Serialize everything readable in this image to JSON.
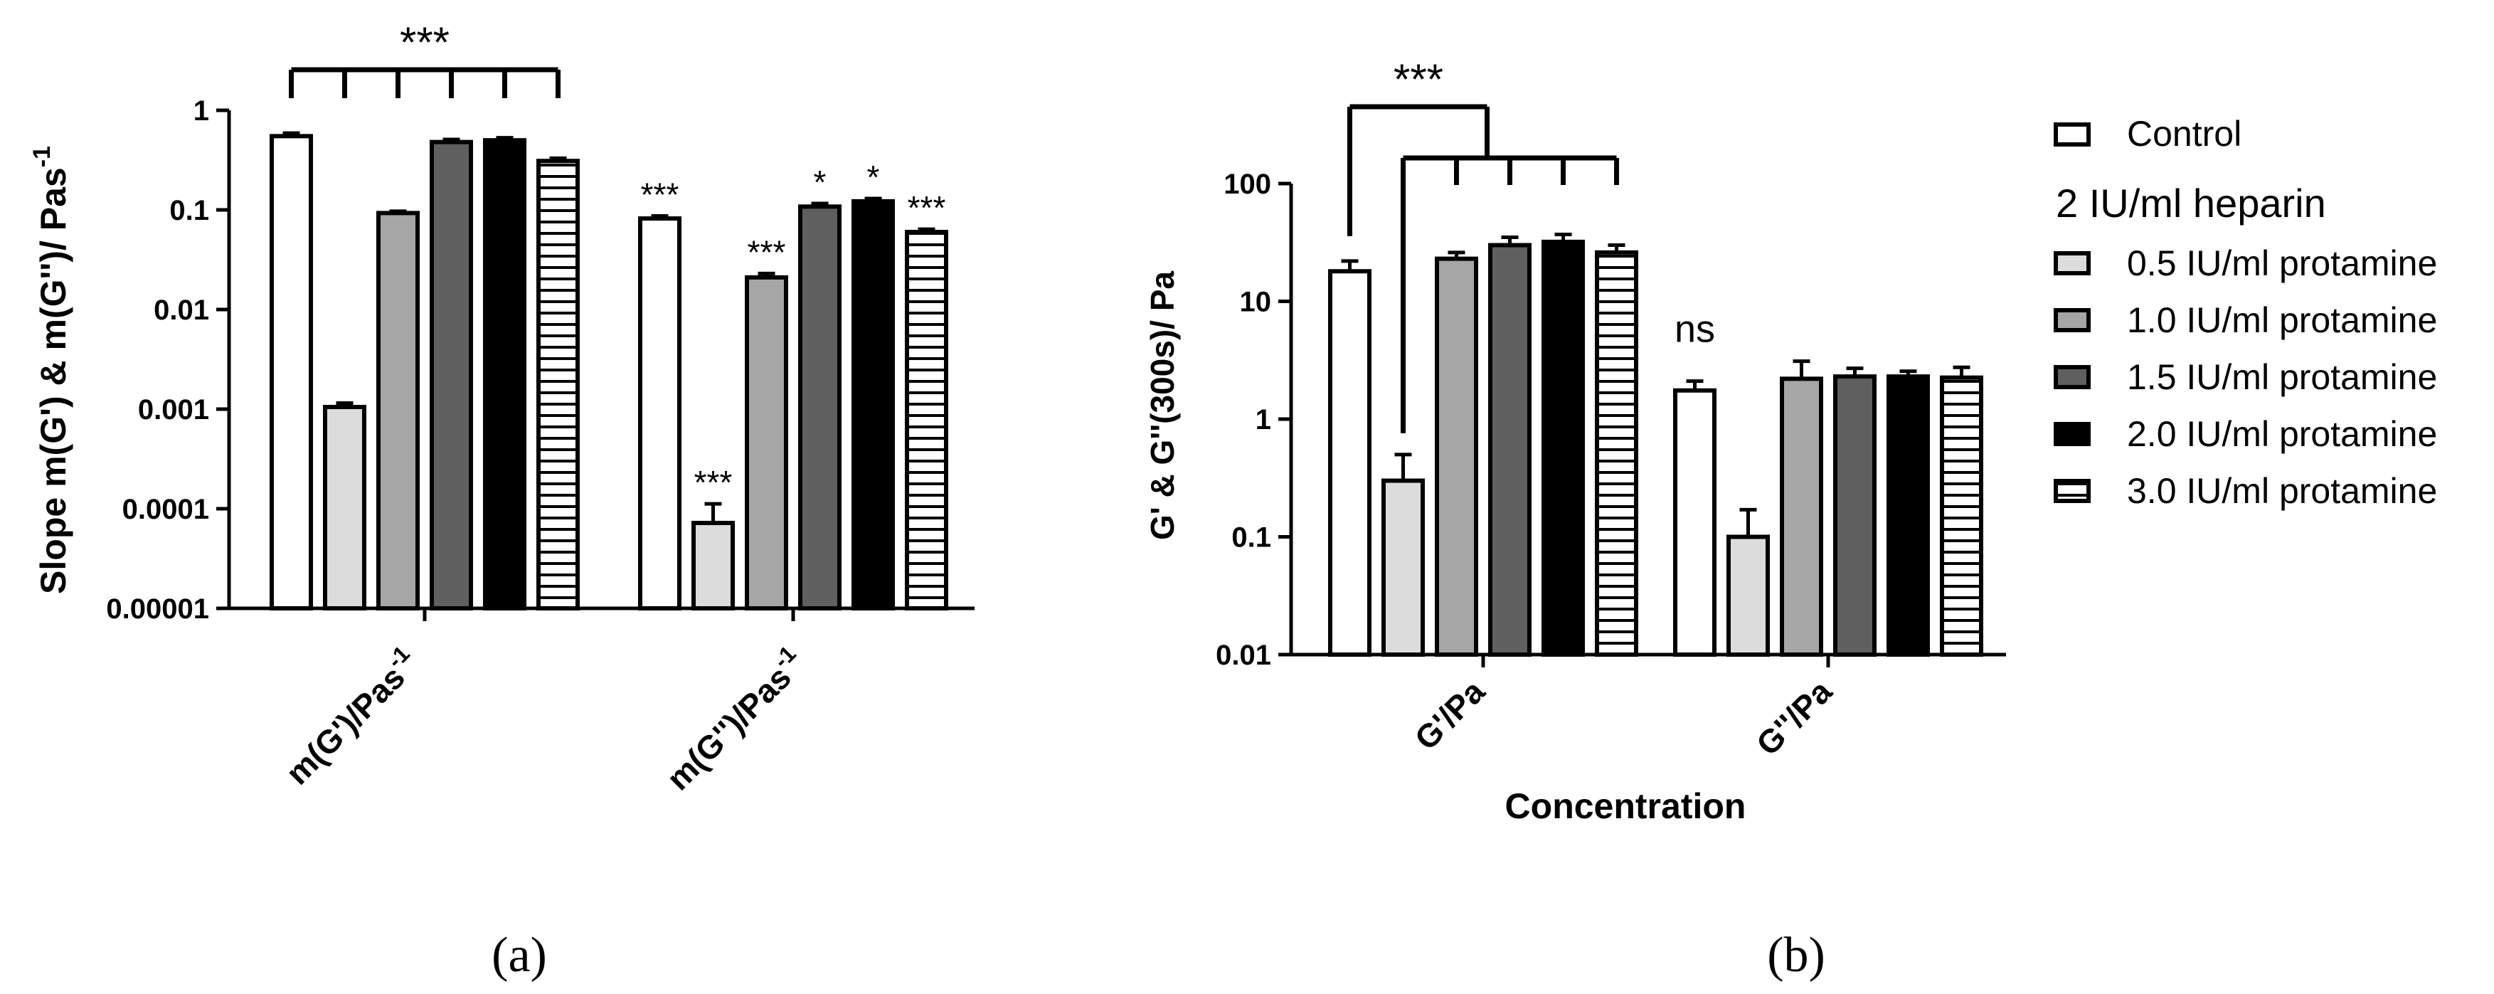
{
  "figure": {
    "legend": {
      "control_label": "Control",
      "group_title": "2 IU/ml heparin",
      "entries": [
        "0.5 IU/ml protamine",
        "1.0 IU/ml protamine",
        "1.5 IU/ml protamine",
        "2.0 IU/ml protamine",
        "3.0 IU/ml protamine"
      ]
    },
    "panel_labels": [
      "(a)",
      "(b)"
    ]
  },
  "styles": {
    "fills": [
      "#ffffff",
      "#dcdcdc",
      "#a6a6a6",
      "#5f5f5f",
      "#000000",
      "hatch"
    ],
    "stroke": "#000000"
  },
  "chart_data": [
    {
      "type": "bar",
      "scale": "log",
      "ylabel": "Slope m(G') & m(G'')/ Pas-1",
      "ylabel_parts": {
        "main": "Slope m(G') & m(G'')/ Pas",
        "sup": "-1"
      },
      "xlabel": "",
      "ylim": [
        1e-05,
        1
      ],
      "yticks": [
        "0.00001",
        "0.0001",
        "0.001",
        "0.01",
        "0.1",
        "1"
      ],
      "categories": [
        "m(G')/Pas-1",
        "m(G'')/Pas-1"
      ],
      "category_parts": [
        {
          "main": "m(G')/Pas",
          "sup": "-1"
        },
        {
          "main": "m(G'')/Pas",
          "sup": "-1"
        }
      ],
      "series": [
        {
          "name": "Control",
          "values": [
            0.55,
            0.082
          ],
          "errors": [
            0.04,
            0.005
          ]
        },
        {
          "name": "0.5 IU/ml protamine",
          "values": [
            0.00105,
            7.2e-05
          ],
          "errors": [
            0.0001,
            4e-05
          ]
        },
        {
          "name": "1.0 IU/ml protamine",
          "values": [
            0.093,
            0.021
          ],
          "errors": [
            0.004,
            0.002
          ]
        },
        {
          "name": "1.5 IU/ml protamine",
          "values": [
            0.48,
            0.108
          ],
          "errors": [
            0.03,
            0.008
          ]
        },
        {
          "name": "2.0 IU/ml protamine",
          "values": [
            0.5,
            0.122
          ],
          "errors": [
            0.03,
            0.008
          ]
        },
        {
          "name": "3.0 IU/ml protamine",
          "values": [
            0.31,
            0.06
          ],
          "errors": [
            0.02,
            0.004
          ]
        }
      ],
      "annotations": {
        "bracket_label": "***",
        "bar_labels": [
          [
            "",
            ""
          ],
          [
            "",
            "***"
          ],
          [
            "",
            "***"
          ],
          [
            "",
            "*"
          ],
          [
            "",
            "*"
          ],
          [
            "",
            "***"
          ]
        ],
        "first_group_control_label": "***"
      }
    },
    {
      "type": "bar",
      "scale": "log",
      "ylabel": "G' & G''(300s)/ Pa",
      "xlabel": "Concentration",
      "ylim": [
        0.01,
        100
      ],
      "yticks": [
        "0.01",
        "0.1",
        "1",
        "10",
        "100"
      ],
      "categories": [
        "G'/Pa",
        "G''/Pa"
      ],
      "series": [
        {
          "name": "Control",
          "values": [
            18,
            1.75
          ],
          "errors": [
            4,
            0.35
          ]
        },
        {
          "name": "0.5 IU/ml protamine",
          "values": [
            0.3,
            0.1
          ],
          "errors": [
            0.2,
            0.07
          ]
        },
        {
          "name": "1.0 IU/ml protamine",
          "values": [
            23,
            2.2
          ],
          "errors": [
            3,
            0.9
          ]
        },
        {
          "name": "1.5 IU/ml protamine",
          "values": [
            30,
            2.3
          ],
          "errors": [
            5,
            0.4
          ]
        },
        {
          "name": "2.0 IU/ml protamine",
          "values": [
            32,
            2.3
          ],
          "errors": [
            5,
            0.25
          ]
        },
        {
          "name": "3.0 IU/ml protamine",
          "values": [
            26,
            2.25
          ],
          "errors": [
            4,
            0.5
          ]
        }
      ],
      "annotations": {
        "bracket_label": "***",
        "ns_label": "ns"
      }
    }
  ]
}
